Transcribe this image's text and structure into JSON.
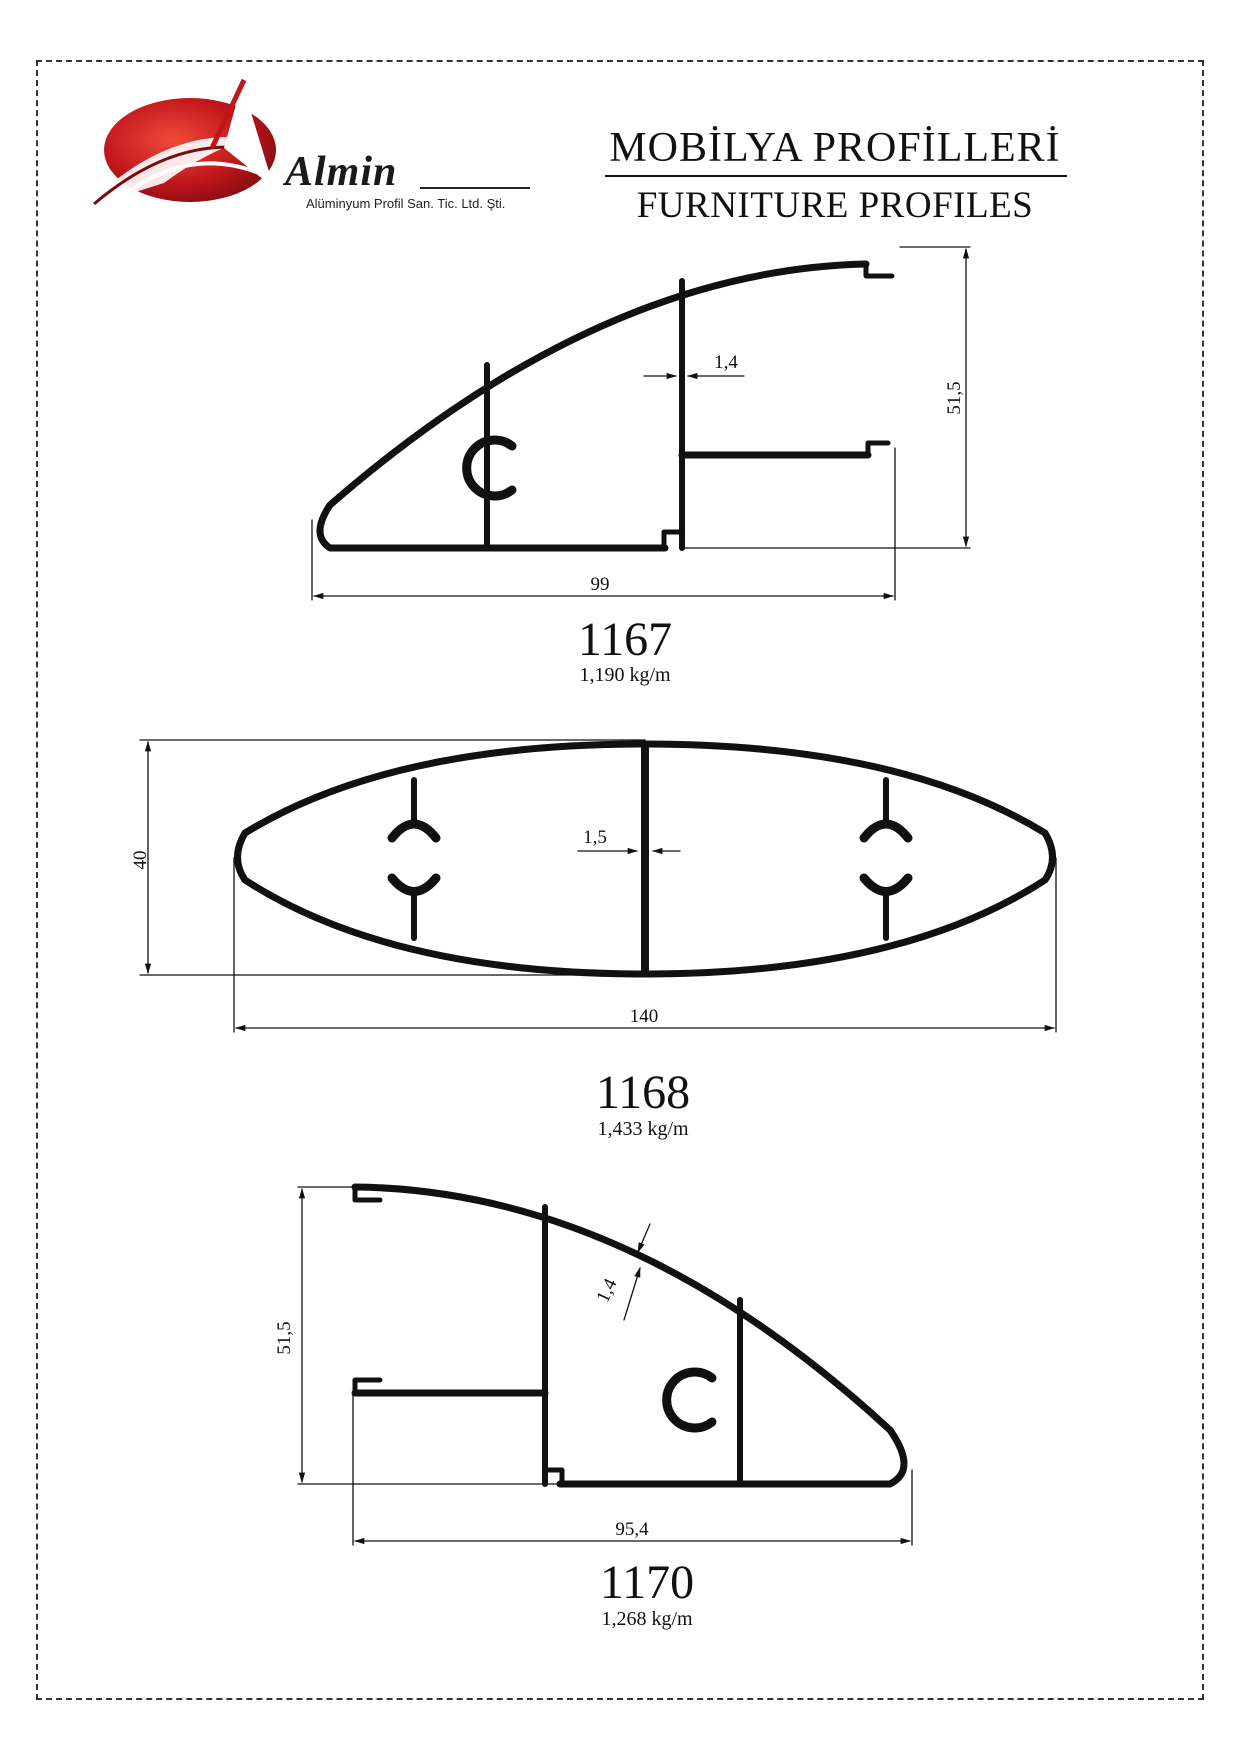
{
  "company": {
    "logo_name": "Almin",
    "logo_subtitle": "Alüminyum Profil San. Tic. Ltd. Şti."
  },
  "header": {
    "title_tr": "MOBİLYA PROFİLLERİ",
    "title_en": "FURNITURE PROFILES"
  },
  "profiles": [
    {
      "code": "1167",
      "weight": "1,190 kg/m",
      "dims": {
        "width": "99",
        "height": "51,5",
        "wall": "1,4"
      }
    },
    {
      "code": "1168",
      "weight": "1,433 kg/m",
      "dims": {
        "width": "140",
        "height": "40",
        "wall": "1,5"
      }
    },
    {
      "code": "1170",
      "weight": "1,268 kg/m",
      "dims": {
        "width": "95,4",
        "height": "51,5",
        "wall": "1,4"
      }
    }
  ],
  "colors": {
    "logo_red": "#c0161b",
    "line": "#111111"
  }
}
